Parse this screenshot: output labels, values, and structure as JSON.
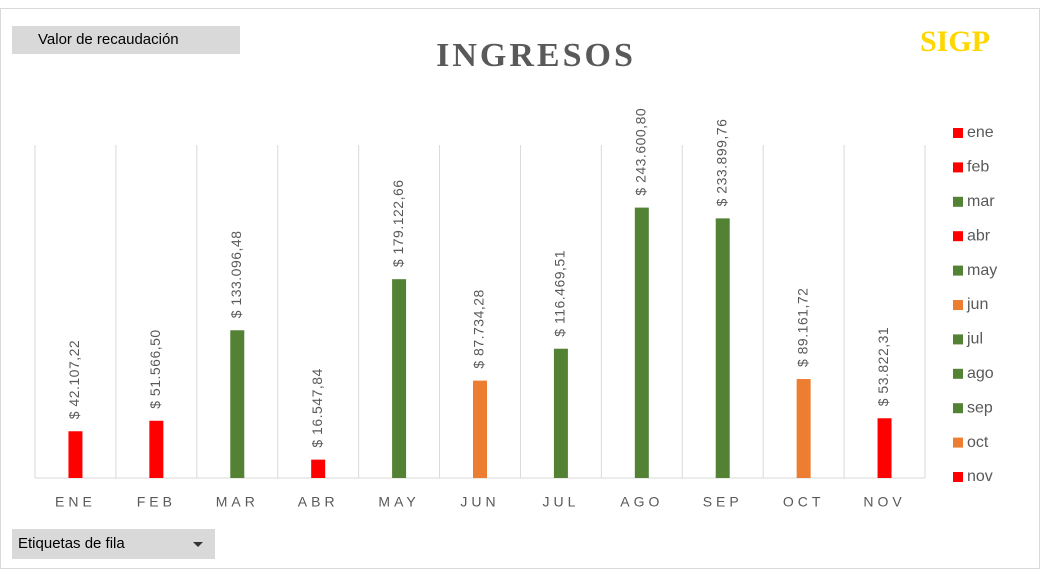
{
  "chart_data": {
    "type": "bar",
    "title": "INGRESOS",
    "logo": "SIGP",
    "value_button": "Valor de recaudación",
    "row_button": "Etiquetas de fila",
    "categories": [
      "ENE",
      "FEB",
      "MAR",
      "ABR",
      "MAY",
      "JUN",
      "JUL",
      "AGO",
      "SEP",
      "OCT",
      "NOV"
    ],
    "values": [
      42107.22,
      51566.5,
      133096.48,
      16547.84,
      179122.66,
      87734.28,
      116469.51,
      243600.8,
      233899.76,
      89161.72,
      53822.31
    ],
    "value_labels": [
      "$ 42.107,22",
      "$ 51.566,50",
      "$ 133.096,48",
      "$ 16.547,84",
      "$ 179.122,66",
      "$ 87.734,28",
      "$ 116.469,51",
      "$ 243.600,80",
      "$ 233.899,76",
      "$ 89.161,72",
      "$ 53.822,31"
    ],
    "colors": [
      "#ff0000",
      "#ff0000",
      "#548235",
      "#ff0000",
      "#548235",
      "#ed7d31",
      "#548235",
      "#548235",
      "#548235",
      "#ed7d31",
      "#ff0000"
    ],
    "legend": [
      "ene",
      "feb",
      "mar",
      "abr",
      "may",
      "jun",
      "jul",
      "ago",
      "sep",
      "oct",
      "nov"
    ],
    "ylim": [
      0,
      300000
    ]
  }
}
